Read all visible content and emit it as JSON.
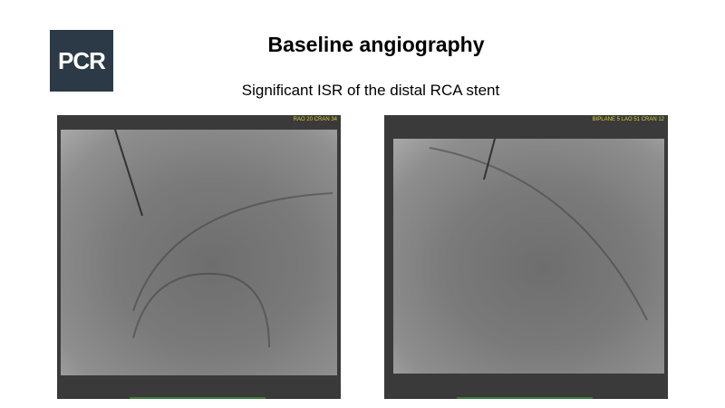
{
  "logo": {
    "text": "PCR"
  },
  "slide": {
    "title": "Baseline angiography",
    "subtitle": "Significant ISR of the distal RCA stent"
  },
  "images": [
    {
      "label": "RAO 20 CRAN 34"
    },
    {
      "label": "BIPLANE 5 LAO 51 CRAN 12"
    }
  ]
}
